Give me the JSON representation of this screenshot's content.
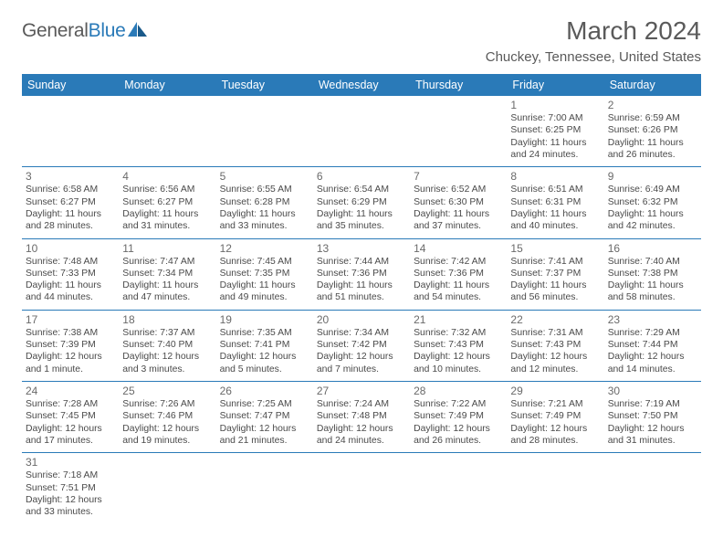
{
  "logo": {
    "text1": "General",
    "text2": "Blue"
  },
  "header": {
    "month_title": "March 2024",
    "location": "Chuckey, Tennessee, United States"
  },
  "colors": {
    "header_bg": "#2a7ab8",
    "header_text": "#ffffff",
    "border": "#2a7ab8",
    "body_text": "#4a4a4a"
  },
  "dayHeaders": [
    "Sunday",
    "Monday",
    "Tuesday",
    "Wednesday",
    "Thursday",
    "Friday",
    "Saturday"
  ],
  "weeks": [
    [
      null,
      null,
      null,
      null,
      null,
      {
        "d": "1",
        "sr": "Sunrise: 7:00 AM",
        "ss": "Sunset: 6:25 PM",
        "dl1": "Daylight: 11 hours",
        "dl2": "and 24 minutes."
      },
      {
        "d": "2",
        "sr": "Sunrise: 6:59 AM",
        "ss": "Sunset: 6:26 PM",
        "dl1": "Daylight: 11 hours",
        "dl2": "and 26 minutes."
      }
    ],
    [
      {
        "d": "3",
        "sr": "Sunrise: 6:58 AM",
        "ss": "Sunset: 6:27 PM",
        "dl1": "Daylight: 11 hours",
        "dl2": "and 28 minutes."
      },
      {
        "d": "4",
        "sr": "Sunrise: 6:56 AM",
        "ss": "Sunset: 6:27 PM",
        "dl1": "Daylight: 11 hours",
        "dl2": "and 31 minutes."
      },
      {
        "d": "5",
        "sr": "Sunrise: 6:55 AM",
        "ss": "Sunset: 6:28 PM",
        "dl1": "Daylight: 11 hours",
        "dl2": "and 33 minutes."
      },
      {
        "d": "6",
        "sr": "Sunrise: 6:54 AM",
        "ss": "Sunset: 6:29 PM",
        "dl1": "Daylight: 11 hours",
        "dl2": "and 35 minutes."
      },
      {
        "d": "7",
        "sr": "Sunrise: 6:52 AM",
        "ss": "Sunset: 6:30 PM",
        "dl1": "Daylight: 11 hours",
        "dl2": "and 37 minutes."
      },
      {
        "d": "8",
        "sr": "Sunrise: 6:51 AM",
        "ss": "Sunset: 6:31 PM",
        "dl1": "Daylight: 11 hours",
        "dl2": "and 40 minutes."
      },
      {
        "d": "9",
        "sr": "Sunrise: 6:49 AM",
        "ss": "Sunset: 6:32 PM",
        "dl1": "Daylight: 11 hours",
        "dl2": "and 42 minutes."
      }
    ],
    [
      {
        "d": "10",
        "sr": "Sunrise: 7:48 AM",
        "ss": "Sunset: 7:33 PM",
        "dl1": "Daylight: 11 hours",
        "dl2": "and 44 minutes."
      },
      {
        "d": "11",
        "sr": "Sunrise: 7:47 AM",
        "ss": "Sunset: 7:34 PM",
        "dl1": "Daylight: 11 hours",
        "dl2": "and 47 minutes."
      },
      {
        "d": "12",
        "sr": "Sunrise: 7:45 AM",
        "ss": "Sunset: 7:35 PM",
        "dl1": "Daylight: 11 hours",
        "dl2": "and 49 minutes."
      },
      {
        "d": "13",
        "sr": "Sunrise: 7:44 AM",
        "ss": "Sunset: 7:36 PM",
        "dl1": "Daylight: 11 hours",
        "dl2": "and 51 minutes."
      },
      {
        "d": "14",
        "sr": "Sunrise: 7:42 AM",
        "ss": "Sunset: 7:36 PM",
        "dl1": "Daylight: 11 hours",
        "dl2": "and 54 minutes."
      },
      {
        "d": "15",
        "sr": "Sunrise: 7:41 AM",
        "ss": "Sunset: 7:37 PM",
        "dl1": "Daylight: 11 hours",
        "dl2": "and 56 minutes."
      },
      {
        "d": "16",
        "sr": "Sunrise: 7:40 AM",
        "ss": "Sunset: 7:38 PM",
        "dl1": "Daylight: 11 hours",
        "dl2": "and 58 minutes."
      }
    ],
    [
      {
        "d": "17",
        "sr": "Sunrise: 7:38 AM",
        "ss": "Sunset: 7:39 PM",
        "dl1": "Daylight: 12 hours",
        "dl2": "and 1 minute."
      },
      {
        "d": "18",
        "sr": "Sunrise: 7:37 AM",
        "ss": "Sunset: 7:40 PM",
        "dl1": "Daylight: 12 hours",
        "dl2": "and 3 minutes."
      },
      {
        "d": "19",
        "sr": "Sunrise: 7:35 AM",
        "ss": "Sunset: 7:41 PM",
        "dl1": "Daylight: 12 hours",
        "dl2": "and 5 minutes."
      },
      {
        "d": "20",
        "sr": "Sunrise: 7:34 AM",
        "ss": "Sunset: 7:42 PM",
        "dl1": "Daylight: 12 hours",
        "dl2": "and 7 minutes."
      },
      {
        "d": "21",
        "sr": "Sunrise: 7:32 AM",
        "ss": "Sunset: 7:43 PM",
        "dl1": "Daylight: 12 hours",
        "dl2": "and 10 minutes."
      },
      {
        "d": "22",
        "sr": "Sunrise: 7:31 AM",
        "ss": "Sunset: 7:43 PM",
        "dl1": "Daylight: 12 hours",
        "dl2": "and 12 minutes."
      },
      {
        "d": "23",
        "sr": "Sunrise: 7:29 AM",
        "ss": "Sunset: 7:44 PM",
        "dl1": "Daylight: 12 hours",
        "dl2": "and 14 minutes."
      }
    ],
    [
      {
        "d": "24",
        "sr": "Sunrise: 7:28 AM",
        "ss": "Sunset: 7:45 PM",
        "dl1": "Daylight: 12 hours",
        "dl2": "and 17 minutes."
      },
      {
        "d": "25",
        "sr": "Sunrise: 7:26 AM",
        "ss": "Sunset: 7:46 PM",
        "dl1": "Daylight: 12 hours",
        "dl2": "and 19 minutes."
      },
      {
        "d": "26",
        "sr": "Sunrise: 7:25 AM",
        "ss": "Sunset: 7:47 PM",
        "dl1": "Daylight: 12 hours",
        "dl2": "and 21 minutes."
      },
      {
        "d": "27",
        "sr": "Sunrise: 7:24 AM",
        "ss": "Sunset: 7:48 PM",
        "dl1": "Daylight: 12 hours",
        "dl2": "and 24 minutes."
      },
      {
        "d": "28",
        "sr": "Sunrise: 7:22 AM",
        "ss": "Sunset: 7:49 PM",
        "dl1": "Daylight: 12 hours",
        "dl2": "and 26 minutes."
      },
      {
        "d": "29",
        "sr": "Sunrise: 7:21 AM",
        "ss": "Sunset: 7:49 PM",
        "dl1": "Daylight: 12 hours",
        "dl2": "and 28 minutes."
      },
      {
        "d": "30",
        "sr": "Sunrise: 7:19 AM",
        "ss": "Sunset: 7:50 PM",
        "dl1": "Daylight: 12 hours",
        "dl2": "and 31 minutes."
      }
    ],
    [
      {
        "d": "31",
        "sr": "Sunrise: 7:18 AM",
        "ss": "Sunset: 7:51 PM",
        "dl1": "Daylight: 12 hours",
        "dl2": "and 33 minutes."
      },
      null,
      null,
      null,
      null,
      null,
      null
    ]
  ]
}
